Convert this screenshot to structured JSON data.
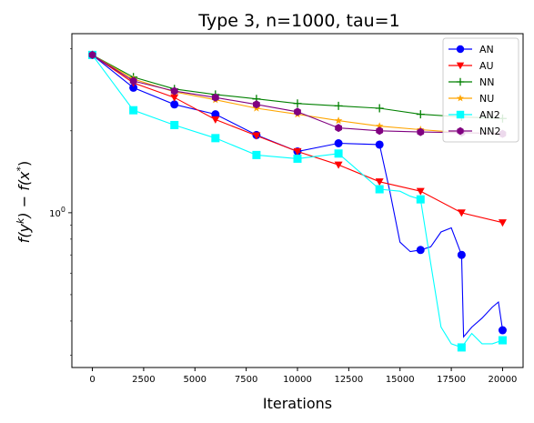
{
  "chart_data": {
    "type": "line",
    "title": "Type 3, n=1000, tau=1",
    "xlabel": "Iterations",
    "ylabel_html": "f(y^k) − f(x^*)",
    "ylabel_parts": {
      "f1": "f(y",
      "k": "k",
      "mid": ") − f(x",
      "star": "*",
      "end": ")"
    },
    "xlim": [
      -1000,
      21000
    ],
    "ylim_log": [
      0.27,
      4.55
    ],
    "yscale": "log",
    "x_ticks": [
      0,
      2500,
      5000,
      7500,
      10000,
      12500,
      15000,
      17500,
      20000
    ],
    "x_tick_labels": [
      "0",
      "2500",
      "5000",
      "7500",
      "10000",
      "12500",
      "15000",
      "17500",
      "20000"
    ],
    "y_major_ticks": [
      1
    ],
    "y_major_tick_labels": [
      "10^0"
    ],
    "legend_position": "top-right",
    "series": [
      {
        "name": "AN",
        "color": "#0000ff",
        "marker": "circle",
        "x": [
          0,
          2000,
          4000,
          6000,
          8000,
          10000,
          12000,
          14000,
          14500,
          15000,
          15500,
          16000,
          16500,
          17000,
          17500,
          18000,
          18100,
          18500,
          19000,
          19500,
          19800,
          20000
        ],
        "y": [
          3.8,
          2.88,
          2.5,
          2.3,
          1.93,
          1.68,
          1.8,
          1.78,
          1.2,
          0.78,
          0.72,
          0.73,
          0.75,
          0.85,
          0.88,
          0.7,
          0.35,
          0.38,
          0.41,
          0.45,
          0.47,
          0.37
        ],
        "markers_x": [
          0,
          2000,
          4000,
          6000,
          8000,
          10000,
          12000,
          14000,
          16000,
          18000,
          20000
        ],
        "markers_y": [
          3.8,
          2.88,
          2.5,
          2.3,
          1.93,
          1.68,
          1.8,
          1.78,
          0.73,
          0.7,
          0.37
        ]
      },
      {
        "name": "AU",
        "color": "#ff0000",
        "marker": "triangle-down",
        "x": [
          0,
          2000,
          4000,
          6000,
          8000,
          10000,
          12000,
          14000,
          16000,
          18000,
          20000
        ],
        "y": [
          3.8,
          3.0,
          2.65,
          2.2,
          1.92,
          1.68,
          1.5,
          1.3,
          1.2,
          1.0,
          0.92
        ],
        "markers_x": [
          0,
          2000,
          4000,
          6000,
          8000,
          10000,
          12000,
          14000,
          16000,
          18000,
          20000
        ],
        "markers_y": [
          3.8,
          3.0,
          2.65,
          2.2,
          1.92,
          1.68,
          1.5,
          1.3,
          1.2,
          1.0,
          0.92
        ]
      },
      {
        "name": "NN",
        "color": "#008000",
        "marker": "plus",
        "x": [
          0,
          2000,
          4000,
          6000,
          8000,
          10000,
          12000,
          14000,
          16000,
          18000,
          20000
        ],
        "y": [
          3.8,
          3.15,
          2.85,
          2.72,
          2.62,
          2.52,
          2.47,
          2.42,
          2.3,
          2.25,
          2.22
        ],
        "markers_x": [
          0,
          2000,
          4000,
          6000,
          8000,
          10000,
          12000,
          14000,
          16000,
          18000,
          20000
        ],
        "markers_y": [
          3.8,
          3.15,
          2.85,
          2.72,
          2.62,
          2.52,
          2.47,
          2.42,
          2.3,
          2.25,
          2.22
        ]
      },
      {
        "name": "NU",
        "color": "#ffa500",
        "marker": "star",
        "x": [
          0,
          2000,
          4000,
          6000,
          8000,
          10000,
          12000,
          14000,
          16000,
          18000,
          20000
        ],
        "y": [
          3.8,
          3.1,
          2.78,
          2.6,
          2.42,
          2.3,
          2.18,
          2.08,
          2.02,
          1.97,
          1.95
        ],
        "markers_x": [
          0,
          2000,
          4000,
          6000,
          8000,
          10000,
          12000,
          14000,
          16000,
          18000,
          20000
        ],
        "markers_y": [
          3.8,
          3.1,
          2.78,
          2.6,
          2.42,
          2.3,
          2.18,
          2.08,
          2.02,
          1.97,
          1.95
        ]
      },
      {
        "name": "AN2",
        "color": "#00ffff",
        "marker": "square",
        "x": [
          0,
          2000,
          4000,
          6000,
          8000,
          10000,
          12000,
          14000,
          15000,
          15500,
          16000,
          16500,
          17000,
          17500,
          18000,
          18500,
          19000,
          19500,
          20000
        ],
        "y": [
          3.8,
          2.38,
          2.1,
          1.88,
          1.63,
          1.58,
          1.65,
          1.22,
          1.2,
          1.15,
          1.12,
          0.65,
          0.38,
          0.33,
          0.32,
          0.36,
          0.33,
          0.33,
          0.34
        ],
        "markers_x": [
          0,
          2000,
          4000,
          6000,
          8000,
          10000,
          12000,
          14000,
          16000,
          18000,
          20000
        ],
        "markers_y": [
          3.8,
          2.38,
          2.1,
          1.88,
          1.63,
          1.58,
          1.65,
          1.22,
          1.12,
          0.32,
          0.34
        ]
      },
      {
        "name": "NN2",
        "color": "#800080",
        "marker": "hexagon",
        "x": [
          0,
          2000,
          4000,
          6000,
          8000,
          10000,
          12000,
          14000,
          16000,
          18000,
          20000
        ],
        "y": [
          3.8,
          3.05,
          2.8,
          2.65,
          2.5,
          2.35,
          2.05,
          2.0,
          1.98,
          1.97,
          1.95
        ],
        "markers_x": [
          0,
          2000,
          4000,
          6000,
          8000,
          10000,
          12000,
          14000,
          16000,
          18000,
          20000
        ],
        "markers_y": [
          3.8,
          3.05,
          2.8,
          2.65,
          2.5,
          2.35,
          2.05,
          2.0,
          1.98,
          1.97,
          1.95
        ]
      }
    ]
  }
}
